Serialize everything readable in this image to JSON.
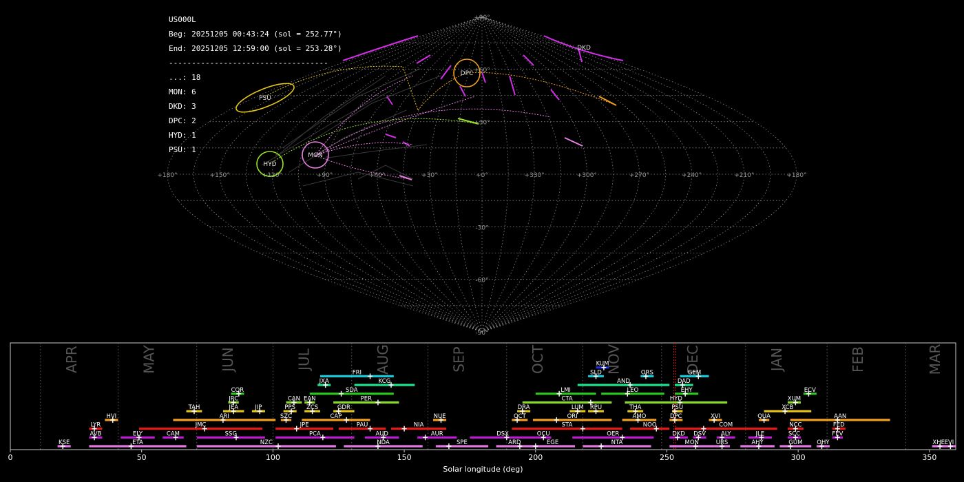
{
  "header": {
    "station": "US000L",
    "beg": "Beg: 20251205 00:43:24 (sol = 252.77°)",
    "end": "End: 20251205 12:59:00 (sol = 253.28°)",
    "separator": "-----------------------------------",
    "counts": [
      "...: 18",
      "MON: 6",
      "DKD: 3",
      "DPC: 2",
      "HYD: 1",
      "PSU: 1"
    ]
  },
  "sky_map": {
    "lat_labels": [
      "+90°",
      "+60°",
      "+30°",
      "-30°",
      "-60°",
      "-90°"
    ],
    "lon_labels": [
      "+180°",
      "+150°",
      "+120°",
      "+90°",
      "+60°",
      "+30°",
      "+0°",
      "+330°",
      "+300°",
      "+270°",
      "+240°",
      "+210°",
      "+180°"
    ],
    "showers": [
      {
        "code": "PSU",
        "color": "#e6c619"
      },
      {
        "code": "HYD",
        "color": "#9be22c"
      },
      {
        "code": "MON",
        "color": "#e77fe0"
      },
      {
        "code": "DPC",
        "color": "#f0a020"
      },
      {
        "code": "DKD",
        "color": "#d22ee8"
      }
    ]
  },
  "chart_data": {
    "type": "timeline",
    "xlabel": "Solar longitude (deg)",
    "xlim": [
      0,
      360
    ],
    "xticks": [
      "0",
      "50",
      "100",
      "150",
      "200",
      "250",
      "300",
      "350"
    ],
    "month_labels": [
      "APR",
      "MAY",
      "JUN",
      "JUL",
      "AUG",
      "SEP",
      "OCT",
      "NOV",
      "DEC",
      "JAN",
      "FEB",
      "MAR"
    ],
    "month_dividers": [
      11.5,
      41,
      71,
      100,
      130,
      159,
      189,
      218,
      248,
      280,
      311,
      341
    ],
    "current_sol": 253.0,
    "showers": [
      {
        "code": "KUM",
        "start": 223,
        "end": 228,
        "peak": 226,
        "row": 8,
        "color": "#1e2fd8"
      },
      {
        "code": "FRI",
        "start": 118,
        "end": 146,
        "peak": 137,
        "row": 7,
        "color": "#19c8d8"
      },
      {
        "code": "SLD",
        "start": 220,
        "end": 226,
        "peak": 223,
        "row": 7,
        "color": "#19c8d8"
      },
      {
        "code": "ORS",
        "start": 240,
        "end": 245,
        "peak": 242,
        "row": 7,
        "color": "#19c8d8"
      },
      {
        "code": "GEM",
        "start": 255,
        "end": 266,
        "peak": 262,
        "row": 7,
        "color": "#19c8d8"
      },
      {
        "code": "JXA",
        "start": 117,
        "end": 122,
        "peak": 120,
        "row": 6,
        "color": "#19e08a"
      },
      {
        "code": "KCG",
        "start": 131,
        "end": 154,
        "peak": 145,
        "row": 6,
        "color": "#19e08a"
      },
      {
        "code": "AND",
        "start": 216,
        "end": 251,
        "peak": 236,
        "row": 6,
        "color": "#19e08a"
      },
      {
        "code": "DAD",
        "start": 253,
        "end": 260,
        "peak": 256,
        "row": 6,
        "color": "#19e08a"
      },
      {
        "code": "COR",
        "start": 84,
        "end": 89,
        "peak": 87,
        "row": 5,
        "color": "#2ec81e"
      },
      {
        "code": "SDA",
        "start": 114,
        "end": 146,
        "peak": 126,
        "row": 5,
        "color": "#2ec81e"
      },
      {
        "code": "LMI",
        "start": 200,
        "end": 223,
        "peak": 209,
        "row": 5,
        "color": "#2ec81e"
      },
      {
        "code": "LEO",
        "start": 225,
        "end": 249,
        "peak": 235,
        "row": 5,
        "color": "#2ec81e"
      },
      {
        "code": "EHY",
        "start": 253,
        "end": 262,
        "peak": 257,
        "row": 5,
        "color": "#2ec81e"
      },
      {
        "code": "ECV",
        "start": 302,
        "end": 307,
        "peak": 304,
        "row": 5,
        "color": "#2ec81e"
      },
      {
        "code": "JRC",
        "start": 83,
        "end": 87,
        "peak": 85,
        "row": 4,
        "color": "#8ad82e"
      },
      {
        "code": "CAN",
        "start": 105,
        "end": 111,
        "peak": 108,
        "row": 4,
        "color": "#8ad82e"
      },
      {
        "code": "EAN",
        "start": 112,
        "end": 116,
        "peak": 114,
        "row": 4,
        "color": "#8ad82e"
      },
      {
        "code": "PER",
        "start": 123,
        "end": 148,
        "peak": 140,
        "row": 4,
        "color": "#8ad82e"
      },
      {
        "code": "CTA",
        "start": 195,
        "end": 229,
        "peak": 221,
        "row": 4,
        "color": "#8ad82e"
      },
      {
        "code": "HYD",
        "start": 234,
        "end": 273,
        "peak": 255,
        "row": 4,
        "color": "#8ad82e"
      },
      {
        "code": "XUM",
        "start": 296,
        "end": 301,
        "peak": 299,
        "row": 4,
        "color": "#8ad82e"
      },
      {
        "code": "TAH",
        "start": 67,
        "end": 73,
        "peak": 70,
        "row": 3,
        "color": "#e6c619"
      },
      {
        "code": "JEA",
        "start": 81,
        "end": 89,
        "peak": 85,
        "row": 3,
        "color": "#e6c619"
      },
      {
        "code": "JIP",
        "start": 92,
        "end": 97,
        "peak": 95,
        "row": 3,
        "color": "#e6c619"
      },
      {
        "code": "PPS",
        "start": 104,
        "end": 109,
        "peak": 107,
        "row": 3,
        "color": "#e6c619"
      },
      {
        "code": "ZCS",
        "start": 112,
        "end": 118,
        "peak": 115,
        "row": 3,
        "color": "#e6c619"
      },
      {
        "code": "GDR",
        "start": 123,
        "end": 131,
        "peak": 125,
        "row": 3,
        "color": "#e6c619"
      },
      {
        "code": "DRA",
        "start": 193,
        "end": 198,
        "peak": 195,
        "row": 3,
        "color": "#e6c619"
      },
      {
        "code": "LUM",
        "start": 213,
        "end": 219,
        "peak": 216,
        "row": 3,
        "color": "#e6c619"
      },
      {
        "code": "RPU",
        "start": 220,
        "end": 226,
        "peak": 223,
        "row": 3,
        "color": "#e6c619"
      },
      {
        "code": "THA",
        "start": 235,
        "end": 241,
        "peak": 238,
        "row": 3,
        "color": "#e6c619"
      },
      {
        "code": "PSU",
        "start": 252,
        "end": 256,
        "peak": 253,
        "row": 3,
        "color": "#e6c619"
      },
      {
        "code": "XCB",
        "start": 287,
        "end": 305,
        "peak": 295,
        "row": 3,
        "color": "#e6c619"
      },
      {
        "code": "HVI",
        "start": 36,
        "end": 41,
        "peak": 39,
        "row": 2,
        "color": "#f0a020"
      },
      {
        "code": "ARI",
        "start": 62,
        "end": 101,
        "peak": 81,
        "row": 2,
        "color": "#f0a020"
      },
      {
        "code": "SZC",
        "start": 103,
        "end": 107,
        "peak": 105,
        "row": 2,
        "color": "#f0a020"
      },
      {
        "code": "CAP",
        "start": 111,
        "end": 137,
        "peak": 128,
        "row": 2,
        "color": "#f0a020"
      },
      {
        "code": "NUE",
        "start": 161,
        "end": 166,
        "peak": 164,
        "row": 2,
        "color": "#f0a020"
      },
      {
        "code": "OCT",
        "start": 191,
        "end": 197,
        "peak": 193,
        "row": 2,
        "color": "#f0a020"
      },
      {
        "code": "ORI",
        "start": 199,
        "end": 229,
        "peak": 208,
        "row": 2,
        "color": "#f0a020"
      },
      {
        "code": "AMO",
        "start": 233,
        "end": 246,
        "peak": 239,
        "row": 2,
        "color": "#f0a020"
      },
      {
        "code": "DPC",
        "start": 251,
        "end": 256,
        "peak": 253,
        "row": 2,
        "color": "#f0a020"
      },
      {
        "code": "XVI",
        "start": 266,
        "end": 271,
        "peak": 268,
        "row": 2,
        "color": "#f0a020"
      },
      {
        "code": "QUA",
        "start": 285,
        "end": 289,
        "peak": 287,
        "row": 2,
        "color": "#f0a020"
      },
      {
        "code": "AAN",
        "start": 297,
        "end": 335,
        "peak": 315,
        "row": 2,
        "color": "#f0a020"
      },
      {
        "code": "LYR",
        "start": 30,
        "end": 35,
        "peak": 32,
        "row": 1,
        "color": "#e61919"
      },
      {
        "code": "JMC",
        "start": 49,
        "end": 96,
        "peak": 74,
        "row": 1,
        "color": "#e61919"
      },
      {
        "code": "JPE",
        "start": 101,
        "end": 123,
        "peak": 109,
        "row": 1,
        "color": "#e61919"
      },
      {
        "code": "PAU",
        "start": 125,
        "end": 143,
        "peak": 137,
        "row": 1,
        "color": "#e61919"
      },
      {
        "code": "NIA",
        "start": 145,
        "end": 166,
        "peak": 150,
        "row": 1,
        "color": "#e61919"
      },
      {
        "code": "STA",
        "start": 191,
        "end": 233,
        "peak": 218,
        "row": 1,
        "color": "#e61919"
      },
      {
        "code": "NOO",
        "start": 236,
        "end": 251,
        "peak": 246,
        "row": 1,
        "color": "#e61919"
      },
      {
        "code": "COM",
        "start": 253,
        "end": 292,
        "peak": 264,
        "row": 1,
        "color": "#e61919"
      },
      {
        "code": "NCC",
        "start": 296,
        "end": 302,
        "peak": 299,
        "row": 1,
        "color": "#e61919"
      },
      {
        "code": "FED",
        "start": 313,
        "end": 318,
        "peak": 315,
        "row": 1,
        "color": "#e61919"
      },
      {
        "code": "AVB",
        "start": 30,
        "end": 35,
        "peak": 32,
        "row": 0,
        "color": "#c319d8"
      },
      {
        "code": "ELY",
        "start": 42,
        "end": 55,
        "peak": 49,
        "row": 0,
        "color": "#c319d8"
      },
      {
        "code": "CAM",
        "start": 58,
        "end": 66,
        "peak": 63,
        "row": 0,
        "color": "#c319d8"
      },
      {
        "code": "SSG",
        "start": 71,
        "end": 97,
        "peak": 86,
        "row": 0,
        "color": "#c319d8"
      },
      {
        "code": "PCA",
        "start": 101,
        "end": 131,
        "peak": 119,
        "row": 0,
        "color": "#c319d8"
      },
      {
        "code": "AUD",
        "start": 135,
        "end": 148,
        "peak": 142,
        "row": 0,
        "color": "#c319d8"
      },
      {
        "code": "AUR",
        "start": 155,
        "end": 170,
        "peak": 158,
        "row": 0,
        "color": "#c319d8"
      },
      {
        "code": "DSX",
        "start": 175,
        "end": 200,
        "peak": 189,
        "row": 0,
        "color": "#c319d8"
      },
      {
        "code": "OCU",
        "start": 200,
        "end": 206,
        "peak": 203,
        "row": 0,
        "color": "#c319d8"
      },
      {
        "code": "OER",
        "start": 214,
        "end": 245,
        "peak": 233,
        "row": 0,
        "color": "#c319d8"
      },
      {
        "code": "DKD",
        "start": 251,
        "end": 258,
        "peak": 254,
        "row": 0,
        "color": "#c319d8"
      },
      {
        "code": "DSV",
        "start": 260,
        "end": 265,
        "peak": 262,
        "row": 0,
        "color": "#c319d8"
      },
      {
        "code": "ALY",
        "start": 269,
        "end": 276,
        "peak": 271,
        "row": 0,
        "color": "#c319d8"
      },
      {
        "code": "JLE",
        "start": 281,
        "end": 290,
        "peak": 286,
        "row": 0,
        "color": "#c319d8"
      },
      {
        "code": "SCC",
        "start": 296,
        "end": 301,
        "peak": 299,
        "row": 0,
        "color": "#c319d8"
      },
      {
        "code": "FEV",
        "start": 313,
        "end": 317,
        "peak": 315,
        "row": 0,
        "color": "#c319d8"
      },
      {
        "code": "KSE",
        "start": 18,
        "end": 23,
        "peak": 20,
        "row": -1,
        "color": "#e077e0"
      },
      {
        "code": "ETA",
        "start": 30,
        "end": 67,
        "peak": 46,
        "row": -1,
        "color": "#e077e0"
      },
      {
        "code": "NZC",
        "start": 71,
        "end": 124,
        "peak": 102,
        "row": -1,
        "color": "#e077e0"
      },
      {
        "code": "NDA",
        "start": 127,
        "end": 157,
        "peak": 140,
        "row": -1,
        "color": "#e077e0"
      },
      {
        "code": "SPE",
        "start": 162,
        "end": 182,
        "peak": 167,
        "row": -1,
        "color": "#e077e0"
      },
      {
        "code": "ARD",
        "start": 185,
        "end": 199,
        "peak": 194,
        "row": -1,
        "color": "#e077e0"
      },
      {
        "code": "EGE",
        "start": 198,
        "end": 215,
        "peak": 200,
        "row": -1,
        "color": "#e077e0"
      },
      {
        "code": "NTA",
        "start": 218,
        "end": 244,
        "peak": 225,
        "row": -1,
        "color": "#e077e0"
      },
      {
        "code": "MON",
        "start": 251,
        "end": 268,
        "peak": 261,
        "row": -1,
        "color": "#e077e0"
      },
      {
        "code": "URS",
        "start": 268,
        "end": 274,
        "peak": 271,
        "row": -1,
        "color": "#e077e0"
      },
      {
        "code": "AHY",
        "start": 278,
        "end": 291,
        "peak": 285,
        "row": -1,
        "color": "#e077e0"
      },
      {
        "code": "GUM",
        "start": 293,
        "end": 305,
        "peak": 297,
        "row": -1,
        "color": "#e077e0"
      },
      {
        "code": "OHY",
        "start": 307,
        "end": 312,
        "peak": 309,
        "row": -1,
        "color": "#e077e0"
      },
      {
        "code": "XHE",
        "start": 351,
        "end": 356,
        "peak": 354,
        "row": -1,
        "color": "#e077e0"
      },
      {
        "code": "EVI",
        "start": 355,
        "end": 360,
        "peak": 358,
        "row": -1,
        "color": "#e077e0"
      }
    ]
  }
}
